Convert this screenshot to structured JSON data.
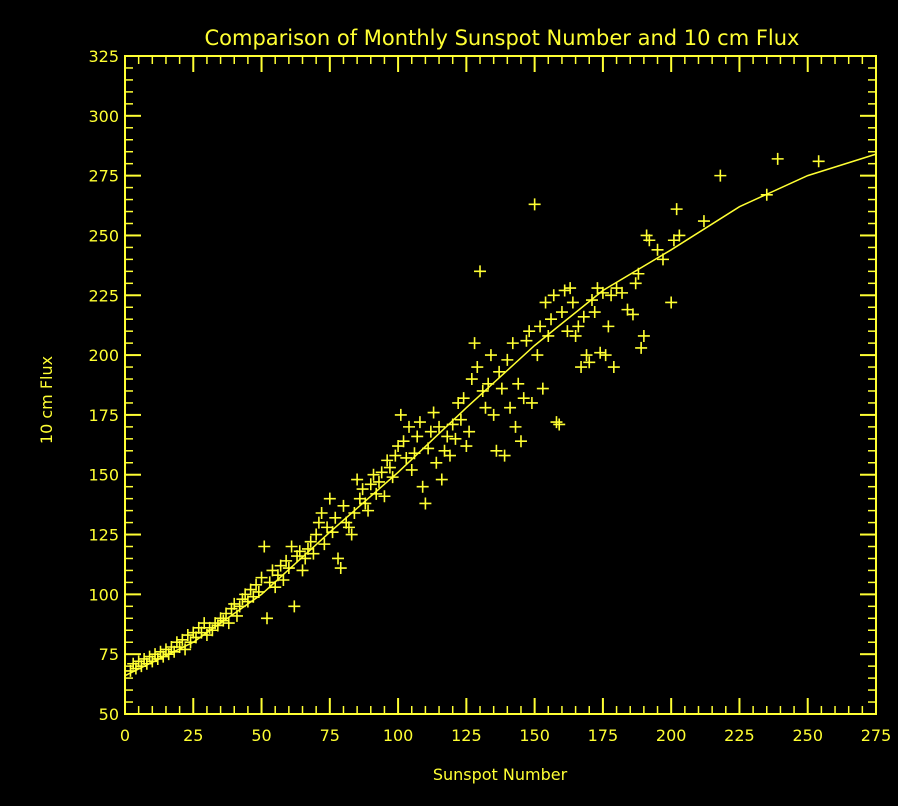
{
  "chart_data": {
    "type": "scatter",
    "title": "Comparison of Monthly Sunspot Number and 10 cm Flux",
    "xlabel": "Sunspot Number",
    "ylabel": "10 cm Flux",
    "xlim": [
      0,
      275
    ],
    "ylim": [
      50,
      325
    ],
    "xticks": [
      "0",
      "25",
      "50",
      "75",
      "100",
      "125",
      "150",
      "175",
      "200",
      "225",
      "250",
      "275"
    ],
    "yticks": [
      "50",
      "75",
      "100",
      "125",
      "150",
      "175",
      "200",
      "225",
      "250",
      "275",
      "300",
      "325"
    ],
    "grid": false,
    "color": "#ffff33",
    "background": "#000000",
    "series": [
      {
        "type": "scatter",
        "marker": "plus",
        "points": [
          [
            2,
            68
          ],
          [
            3,
            71
          ],
          [
            4,
            69
          ],
          [
            5,
            72
          ],
          [
            6,
            70
          ],
          [
            7,
            73
          ],
          [
            8,
            71
          ],
          [
            9,
            74
          ],
          [
            10,
            72
          ],
          [
            11,
            75
          ],
          [
            12,
            73
          ],
          [
            13,
            76
          ],
          [
            14,
            74
          ],
          [
            15,
            77
          ],
          [
            16,
            75
          ],
          [
            17,
            78
          ],
          [
            18,
            76
          ],
          [
            19,
            80
          ],
          [
            20,
            78
          ],
          [
            21,
            81
          ],
          [
            22,
            77
          ],
          [
            23,
            83
          ],
          [
            24,
            80
          ],
          [
            25,
            84
          ],
          [
            26,
            82
          ],
          [
            27,
            86
          ],
          [
            28,
            84
          ],
          [
            29,
            88
          ],
          [
            30,
            83
          ],
          [
            31,
            86
          ],
          [
            32,
            85
          ],
          [
            33,
            88
          ],
          [
            34,
            87
          ],
          [
            35,
            90
          ],
          [
            36,
            89
          ],
          [
            37,
            92
          ],
          [
            38,
            88
          ],
          [
            39,
            94
          ],
          [
            40,
            96
          ],
          [
            41,
            91
          ],
          [
            42,
            95
          ],
          [
            43,
            98
          ],
          [
            44,
            100
          ],
          [
            45,
            97
          ],
          [
            46,
            102
          ],
          [
            47,
            99
          ],
          [
            48,
            104
          ],
          [
            49,
            101
          ],
          [
            50,
            107
          ],
          [
            51,
            120
          ],
          [
            52,
            90
          ],
          [
            53,
            105
          ],
          [
            54,
            110
          ],
          [
            55,
            103
          ],
          [
            56,
            108
          ],
          [
            57,
            112
          ],
          [
            58,
            106
          ],
          [
            59,
            114
          ],
          [
            60,
            111
          ],
          [
            61,
            120
          ],
          [
            62,
            95
          ],
          [
            63,
            116
          ],
          [
            64,
            118
          ],
          [
            65,
            110
          ],
          [
            66,
            115
          ],
          [
            67,
            119
          ],
          [
            68,
            122
          ],
          [
            69,
            117
          ],
          [
            70,
            125
          ],
          [
            71,
            130
          ],
          [
            72,
            134
          ],
          [
            73,
            121
          ],
          [
            74,
            128
          ],
          [
            75,
            140
          ],
          [
            76,
            126
          ],
          [
            77,
            132
          ],
          [
            78,
            115
          ],
          [
            79,
            111
          ],
          [
            80,
            137
          ],
          [
            81,
            130
          ],
          [
            82,
            128
          ],
          [
            83,
            125
          ],
          [
            84,
            134
          ],
          [
            85,
            148
          ],
          [
            86,
            140
          ],
          [
            87,
            144
          ],
          [
            88,
            138
          ],
          [
            89,
            135
          ],
          [
            90,
            146
          ],
          [
            91,
            150
          ],
          [
            92,
            142
          ],
          [
            93,
            147
          ],
          [
            94,
            151
          ],
          [
            95,
            141
          ],
          [
            96,
            156
          ],
          [
            97,
            153
          ],
          [
            98,
            149
          ],
          [
            99,
            158
          ],
          [
            100,
            162
          ],
          [
            101,
            175
          ],
          [
            102,
            164
          ],
          [
            103,
            157
          ],
          [
            104,
            170
          ],
          [
            105,
            152
          ],
          [
            106,
            159
          ],
          [
            107,
            166
          ],
          [
            108,
            172
          ],
          [
            109,
            145
          ],
          [
            110,
            138
          ],
          [
            111,
            161
          ],
          [
            112,
            168
          ],
          [
            113,
            176
          ],
          [
            114,
            155
          ],
          [
            115,
            170
          ],
          [
            116,
            148
          ],
          [
            117,
            160
          ],
          [
            118,
            166
          ],
          [
            119,
            158
          ],
          [
            120,
            171
          ],
          [
            121,
            165
          ],
          [
            122,
            180
          ],
          [
            123,
            173
          ],
          [
            124,
            182
          ],
          [
            125,
            162
          ],
          [
            126,
            168
          ],
          [
            127,
            190
          ],
          [
            128,
            205
          ],
          [
            129,
            195
          ],
          [
            130,
            235
          ],
          [
            131,
            185
          ],
          [
            132,
            178
          ],
          [
            133,
            188
          ],
          [
            134,
            200
          ],
          [
            135,
            175
          ],
          [
            136,
            160
          ],
          [
            137,
            193
          ],
          [
            138,
            186
          ],
          [
            139,
            158
          ],
          [
            140,
            198
          ],
          [
            141,
            178
          ],
          [
            142,
            205
          ],
          [
            143,
            170
          ],
          [
            144,
            188
          ],
          [
            145,
            164
          ],
          [
            146,
            182
          ],
          [
            147,
            206
          ],
          [
            148,
            210
          ],
          [
            149,
            180
          ],
          [
            150,
            263
          ],
          [
            151,
            200
          ],
          [
            152,
            212
          ],
          [
            153,
            186
          ],
          [
            154,
            222
          ],
          [
            155,
            208
          ],
          [
            156,
            215
          ],
          [
            157,
            225
          ],
          [
            158,
            172
          ],
          [
            159,
            171
          ],
          [
            160,
            218
          ],
          [
            161,
            227
          ],
          [
            162,
            210
          ],
          [
            163,
            228
          ],
          [
            164,
            222
          ],
          [
            165,
            208
          ],
          [
            166,
            212
          ],
          [
            167,
            195
          ],
          [
            168,
            216
          ],
          [
            169,
            200
          ],
          [
            170,
            197
          ],
          [
            171,
            223
          ],
          [
            172,
            218
          ],
          [
            173,
            228
          ],
          [
            174,
            201
          ],
          [
            175,
            226
          ],
          [
            176,
            200
          ],
          [
            177,
            212
          ],
          [
            178,
            225
          ],
          [
            179,
            195
          ],
          [
            180,
            228
          ],
          [
            182,
            226
          ],
          [
            184,
            219
          ],
          [
            186,
            217
          ],
          [
            187,
            230
          ],
          [
            188,
            234
          ],
          [
            189,
            203
          ],
          [
            190,
            208
          ],
          [
            191,
            250
          ],
          [
            192,
            248
          ],
          [
            195,
            244
          ],
          [
            197,
            240
          ],
          [
            200,
            222
          ],
          [
            201,
            248
          ],
          [
            202,
            261
          ],
          [
            203,
            250
          ],
          [
            212,
            256
          ],
          [
            218,
            275
          ],
          [
            235,
            267
          ],
          [
            239,
            282
          ],
          [
            254,
            281
          ]
        ]
      },
      {
        "type": "line",
        "name": "",
        "x": [
          0,
          25,
          50,
          75,
          100,
          125,
          150,
          175,
          200,
          225,
          250,
          275
        ],
        "y": [
          66,
          80,
          100,
          126,
          151,
          178,
          204,
          227,
          244,
          262,
          275,
          284
        ]
      }
    ]
  }
}
